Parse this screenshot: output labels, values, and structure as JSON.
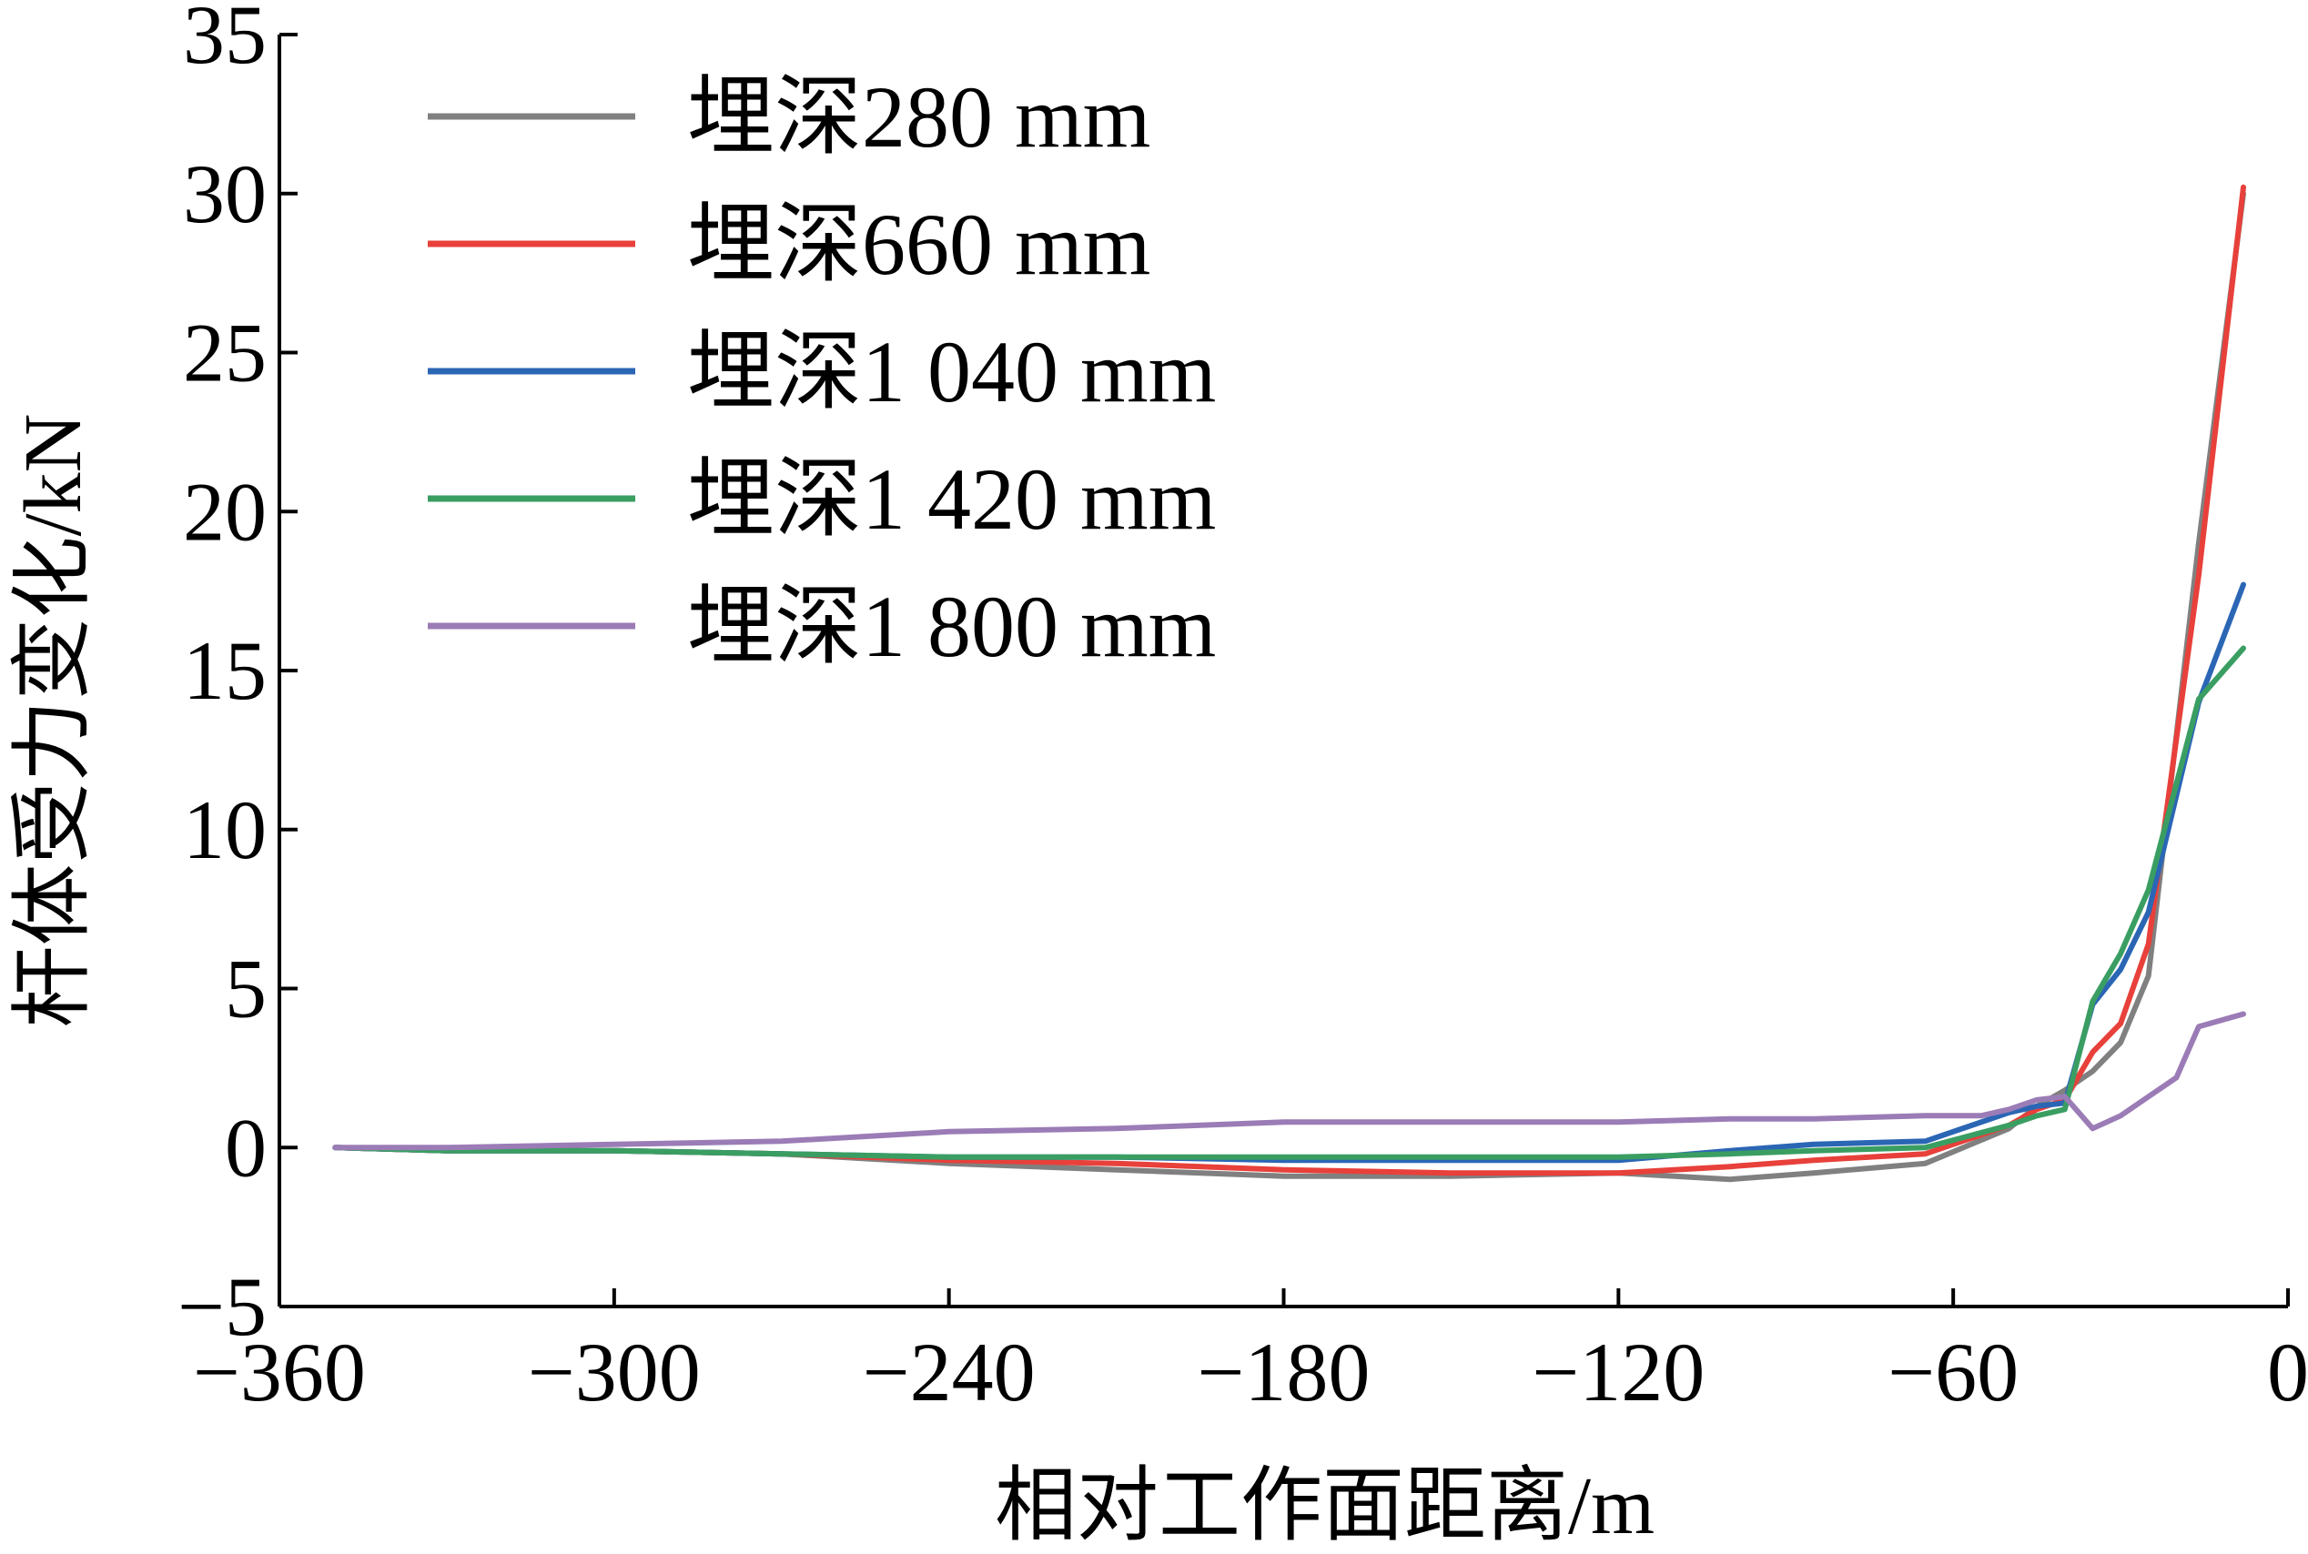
{
  "chart_data": {
    "type": "line",
    "xlabel": "相对工作面距离/m",
    "ylabel": "杆体受力变化/kN",
    "xlim": [
      -360,
      0
    ],
    "ylim": [
      -5,
      35
    ],
    "xticks": [
      -360,
      -300,
      -240,
      -180,
      -120,
      -60,
      0
    ],
    "yticks": [
      -5,
      0,
      5,
      10,
      15,
      20,
      25,
      30,
      35
    ],
    "xtick_labels": [
      "−360",
      "−300",
      "−240",
      "−180",
      "−120",
      "−60",
      "0"
    ],
    "ytick_labels": [
      "−5",
      "0",
      "5",
      "10",
      "15",
      "20",
      "25",
      "30",
      "35"
    ],
    "grid": false,
    "legend_position": "top-left",
    "series": [
      {
        "name": "埋深280 mm",
        "color": "#808080",
        "x": [
          -350,
          -330,
          -300,
          -270,
          -240,
          -210,
          -180,
          -150,
          -120,
          -100,
          -85,
          -65,
          -50,
          -45,
          -40,
          -35,
          -30,
          -25,
          -16,
          -8
        ],
        "y": [
          0,
          -0.1,
          -0.1,
          -0.2,
          -0.5,
          -0.7,
          -0.9,
          -0.9,
          -0.8,
          -1.0,
          -0.8,
          -0.5,
          0.6,
          1.3,
          1.8,
          2.4,
          3.3,
          5.4,
          19.0,
          30.0
        ]
      },
      {
        "name": "埋深660 mm",
        "color": "#E8403A",
        "x": [
          -350,
          -330,
          -300,
          -270,
          -240,
          -210,
          -180,
          -150,
          -120,
          -100,
          -85,
          -65,
          -50,
          -45,
          -40,
          -35,
          -30,
          -25,
          -16,
          -8
        ],
        "y": [
          0,
          -0.1,
          -0.1,
          -0.2,
          -0.4,
          -0.5,
          -0.7,
          -0.8,
          -0.8,
          -0.6,
          -0.4,
          -0.2,
          0.7,
          1.2,
          1.5,
          3.0,
          3.9,
          6.4,
          18.0,
          30.2
        ]
      },
      {
        "name": "埋深1 040 mm",
        "color": "#2B66B5",
        "x": [
          -350,
          -330,
          -300,
          -270,
          -240,
          -210,
          -180,
          -150,
          -120,
          -100,
          -85,
          -65,
          -50,
          -45,
          -40,
          -35,
          -30,
          -25,
          -16,
          -8
        ],
        "y": [
          0,
          -0.1,
          -0.1,
          -0.2,
          -0.3,
          -0.3,
          -0.4,
          -0.4,
          -0.4,
          -0.1,
          0.1,
          0.2,
          1.1,
          1.3,
          1.4,
          4.5,
          5.6,
          7.4,
          14.0,
          17.7
        ]
      },
      {
        "name": "埋深1 420 mm",
        "color": "#3A9E62",
        "x": [
          -350,
          -330,
          -300,
          -270,
          -240,
          -210,
          -180,
          -150,
          -120,
          -100,
          -85,
          -65,
          -50,
          -45,
          -40,
          -35,
          -30,
          -25,
          -16,
          -8
        ],
        "y": [
          0,
          -0.1,
          -0.1,
          -0.2,
          -0.3,
          -0.3,
          -0.3,
          -0.3,
          -0.3,
          -0.2,
          -0.1,
          0.0,
          0.7,
          1.0,
          1.2,
          4.6,
          6.1,
          8.1,
          14.1,
          15.7
        ]
      },
      {
        "name": "埋深1 800 mm",
        "color": "#9B7CB6",
        "x": [
          -350,
          -330,
          -300,
          -270,
          -240,
          -210,
          -180,
          -150,
          -120,
          -100,
          -85,
          -65,
          -55,
          -50,
          -45,
          -40,
          -35,
          -30,
          -25,
          -20,
          -16,
          -8
        ],
        "y": [
          0,
          0,
          0.1,
          0.2,
          0.5,
          0.6,
          0.8,
          0.8,
          0.8,
          0.9,
          0.9,
          1.0,
          1.0,
          1.2,
          1.5,
          1.6,
          0.6,
          1.0,
          1.6,
          2.2,
          3.8,
          4.2
        ]
      }
    ]
  }
}
